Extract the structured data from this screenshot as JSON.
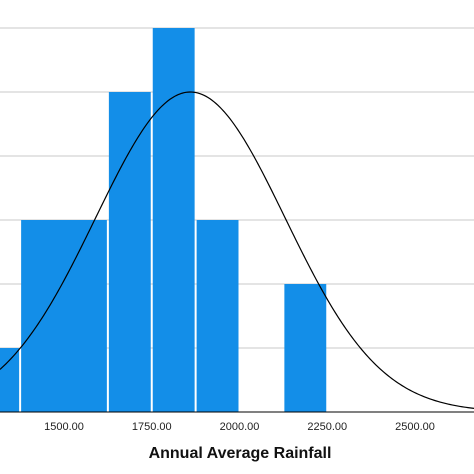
{
  "chart_data": {
    "type": "bar",
    "subtype": "histogram",
    "xlabel": "Annual Average Rainfall",
    "xlim": [
      1375,
      2625
    ],
    "ylim": [
      0,
      6.1
    ],
    "x_tick_values": [
      1500,
      1750,
      2000,
      2250,
      2500
    ],
    "x_tick_labels": [
      "1500.00",
      "1750.00",
      "2000.00",
      "2250.00",
      "2500.00"
    ],
    "gridlines_y": [
      1,
      2,
      3,
      4,
      5,
      6
    ],
    "grid": "horizontal",
    "bars": [
      {
        "x0": 1250,
        "x1": 1375,
        "value": 1
      },
      {
        "x0": 1375,
        "x1": 1625,
        "value": 3
      },
      {
        "x0": 1625,
        "x1": 1750,
        "value": 5
      },
      {
        "x0": 1750,
        "x1": 1875,
        "value": 6
      },
      {
        "x0": 1875,
        "x1": 2000,
        "value": 3
      },
      {
        "x0": 2125,
        "x1": 2250,
        "value": 2
      }
    ],
    "normal_curve": {
      "mean": 1860,
      "sd": 270,
      "peak": 5
    },
    "colors": {
      "bar": "#138ee8",
      "curve": "#000000",
      "grid": "#c8c8c8"
    }
  }
}
